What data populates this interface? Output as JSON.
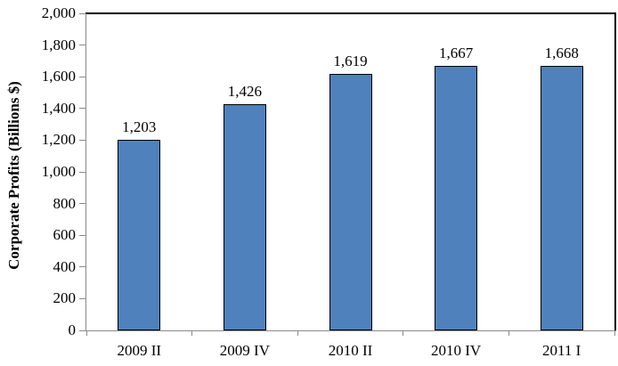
{
  "chart_data": {
    "type": "bar",
    "title": "",
    "xlabel": "",
    "ylabel": "Corporate Profits (Billions $)",
    "categories": [
      "2009 II",
      "2009 IV",
      "2010 II",
      "2010 IV",
      "2011 I"
    ],
    "values": [
      1203,
      1426,
      1619,
      1667,
      1668
    ],
    "data_labels": [
      "1,203",
      "1,426",
      "1,619",
      "1,667",
      "1,668"
    ],
    "ylim": [
      0,
      2000
    ],
    "ytick_step": 200,
    "ytick_labels": [
      "0",
      "200",
      "400",
      "600",
      "800",
      "1,000",
      "1,200",
      "1,400",
      "1,600",
      "1,800",
      "2,000"
    ],
    "grid": false,
    "legend": false,
    "colors": {
      "bar_fill": "#4F81BD",
      "bar_border": "#000000",
      "axis": "#8a8a8a",
      "plot_border": "#000000",
      "text": "#000000"
    }
  }
}
